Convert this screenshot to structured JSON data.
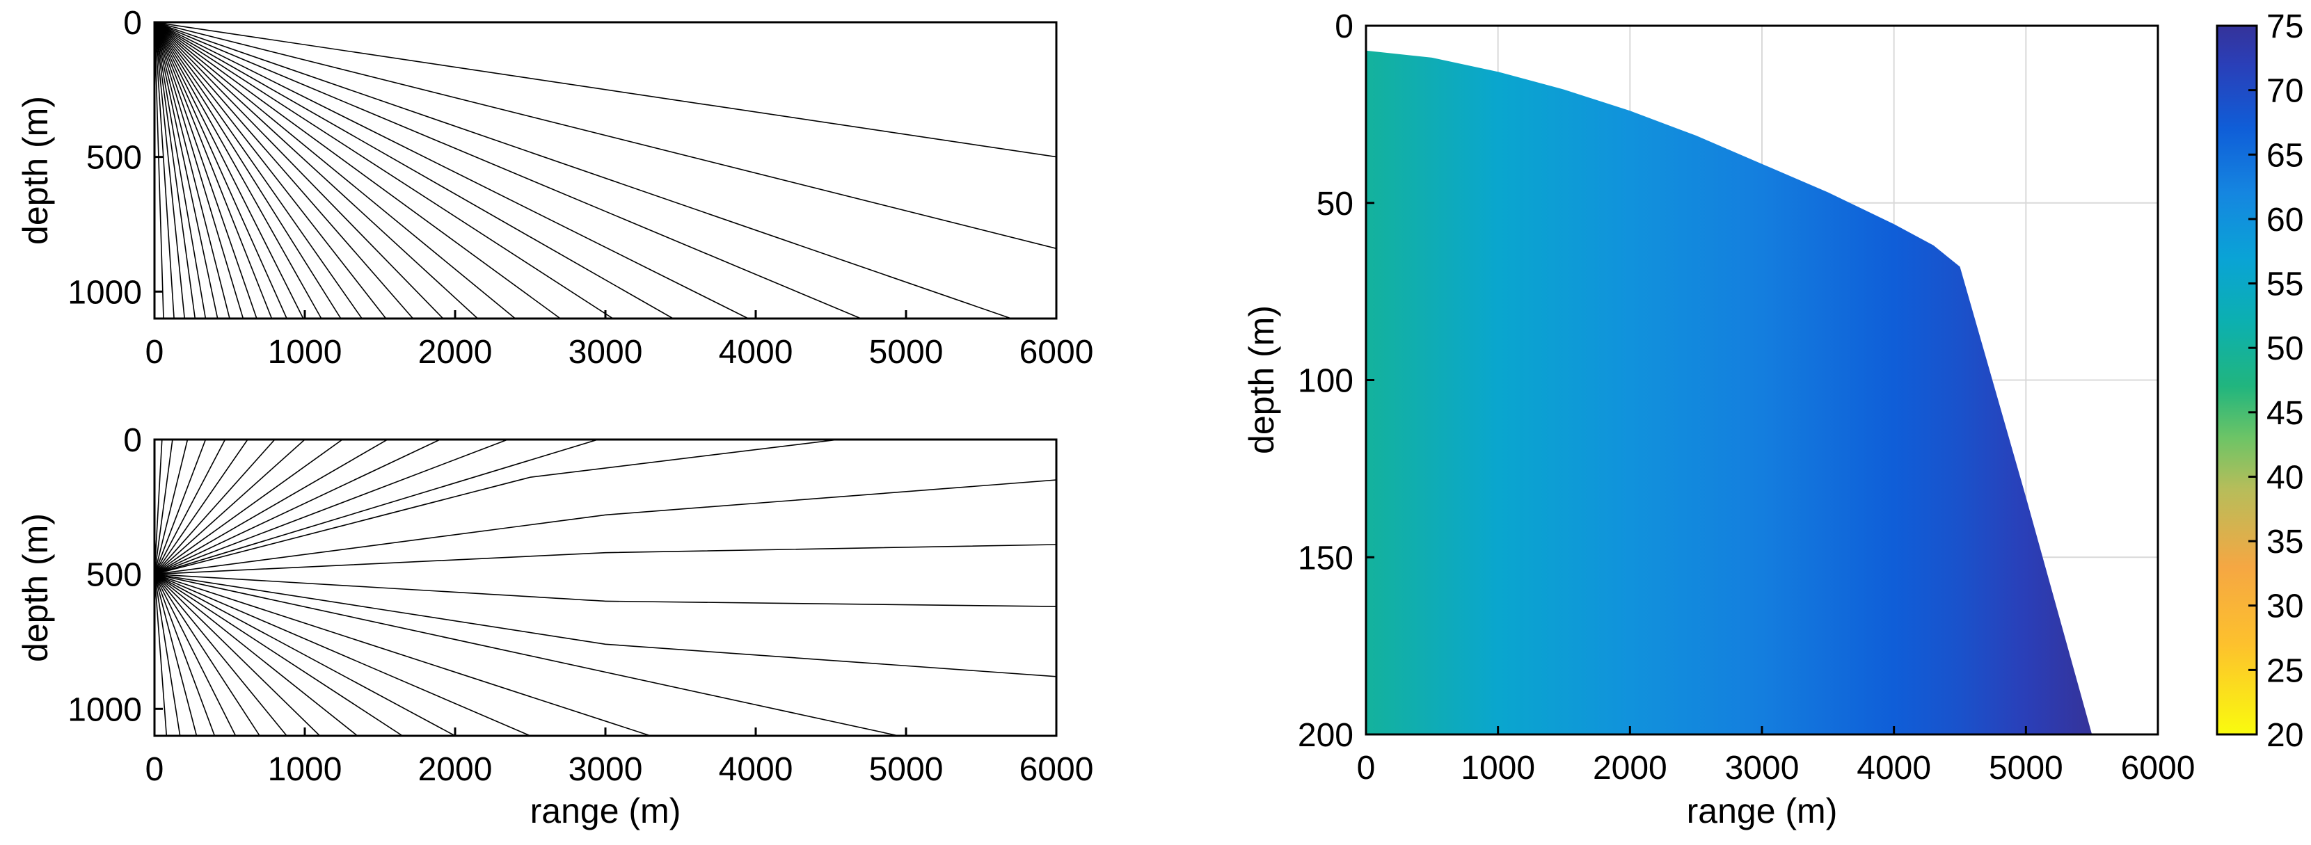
{
  "chart_data": [
    {
      "type": "line",
      "panel": "top-left",
      "xlabel": "",
      "ylabel": "depth (m)",
      "xlim": [
        0,
        6000
      ],
      "ylim": [
        1100,
        0
      ],
      "xticks": [
        "0",
        "1000",
        "2000",
        "3000",
        "4000",
        "5000",
        "6000"
      ],
      "yticks": [
        "0",
        "500",
        "1000"
      ],
      "ray_source": {
        "x": 0,
        "depth": 0
      },
      "series": [
        {
          "values": [
            [
              0,
              0
            ],
            [
              60,
              1100
            ]
          ]
        },
        {
          "values": [
            [
              0,
              0
            ],
            [
              130,
              1100
            ]
          ]
        },
        {
          "values": [
            [
              0,
              0
            ],
            [
              200,
              1100
            ]
          ]
        },
        {
          "values": [
            [
              0,
              0
            ],
            [
              270,
              1100
            ]
          ]
        },
        {
          "values": [
            [
              0,
              0
            ],
            [
              340,
              1100
            ]
          ]
        },
        {
          "values": [
            [
              0,
              0
            ],
            [
              420,
              1100
            ]
          ]
        },
        {
          "values": [
            [
              0,
              0
            ],
            [
              500,
              1100
            ]
          ]
        },
        {
          "values": [
            [
              0,
              0
            ],
            [
              590,
              1100
            ]
          ]
        },
        {
          "values": [
            [
              0,
              0
            ],
            [
              680,
              1100
            ]
          ]
        },
        {
          "values": [
            [
              0,
              0
            ],
            [
              780,
              1100
            ]
          ]
        },
        {
          "values": [
            [
              0,
              0
            ],
            [
              880,
              1100
            ]
          ]
        },
        {
          "values": [
            [
              0,
              0
            ],
            [
              990,
              1100
            ]
          ]
        },
        {
          "values": [
            [
              0,
              0
            ],
            [
              1110,
              1100
            ]
          ]
        },
        {
          "values": [
            [
              0,
              0
            ],
            [
              1240,
              1100
            ]
          ]
        },
        {
          "values": [
            [
              0,
              0
            ],
            [
              1380,
              1100
            ]
          ]
        },
        {
          "values": [
            [
              0,
              0
            ],
            [
              1540,
              1100
            ]
          ]
        },
        {
          "values": [
            [
              0,
              0
            ],
            [
              1720,
              1100
            ]
          ]
        },
        {
          "values": [
            [
              0,
              0
            ],
            [
              1920,
              1100
            ]
          ]
        },
        {
          "values": [
            [
              0,
              0
            ],
            [
              2150,
              1100
            ]
          ]
        },
        {
          "values": [
            [
              0,
              0
            ],
            [
              2400,
              1100
            ]
          ]
        },
        {
          "values": [
            [
              0,
              0
            ],
            [
              2700,
              1100
            ]
          ]
        },
        {
          "values": [
            [
              0,
              0
            ],
            [
              3050,
              1100
            ]
          ]
        },
        {
          "values": [
            [
              0,
              0
            ],
            [
              3450,
              1100
            ]
          ]
        },
        {
          "values": [
            [
              0,
              0
            ],
            [
              3950,
              1100
            ]
          ]
        },
        {
          "values": [
            [
              0,
              0
            ],
            [
              4700,
              1100
            ]
          ]
        },
        {
          "values": [
            [
              0,
              0
            ],
            [
              5700,
              1100
            ]
          ]
        },
        {
          "values": [
            [
              0,
              0
            ],
            [
              6000,
              840
            ]
          ]
        },
        {
          "values": [
            [
              0,
              0
            ],
            [
              6000,
              500
            ]
          ]
        },
        {
          "values": [
            [
              0,
              0
            ],
            [
              2250,
              0
            ]
          ]
        },
        {
          "values": [
            [
              0,
              0
            ],
            [
              1850,
              0
            ]
          ]
        },
        {
          "values": [
            [
              0,
              0
            ],
            [
              1500,
              0
            ]
          ]
        }
      ]
    },
    {
      "type": "line",
      "panel": "bottom-left",
      "xlabel": "range (m)",
      "ylabel": "depth (m)",
      "xlim": [
        0,
        6000
      ],
      "ylim": [
        1100,
        0
      ],
      "xticks": [
        "0",
        "1000",
        "2000",
        "3000",
        "4000",
        "5000",
        "6000"
      ],
      "yticks": [
        "0",
        "500",
        "1000"
      ],
      "ray_source": {
        "x": 0,
        "depth": 500
      },
      "series": [
        {
          "values": [
            [
              0,
              500
            ],
            [
              2950,
              0
            ]
          ]
        },
        {
          "values": [
            [
              0,
              500
            ],
            [
              2350,
              0
            ]
          ]
        },
        {
          "values": [
            [
              0,
              500
            ],
            [
              1900,
              0
            ]
          ]
        },
        {
          "values": [
            [
              0,
              500
            ],
            [
              1550,
              0
            ]
          ]
        },
        {
          "values": [
            [
              0,
              500
            ],
            [
              1250,
              0
            ]
          ]
        },
        {
          "values": [
            [
              0,
              500
            ],
            [
              1000,
              0
            ]
          ]
        },
        {
          "values": [
            [
              0,
              500
            ],
            [
              800,
              0
            ]
          ]
        },
        {
          "values": [
            [
              0,
              500
            ],
            [
              620,
              0
            ]
          ]
        },
        {
          "values": [
            [
              0,
              500
            ],
            [
              470,
              0
            ]
          ]
        },
        {
          "values": [
            [
              0,
              500
            ],
            [
              340,
              0
            ]
          ]
        },
        {
          "values": [
            [
              0,
              500
            ],
            [
              220,
              0
            ]
          ]
        },
        {
          "values": [
            [
              0,
              500
            ],
            [
              120,
              0
            ]
          ]
        },
        {
          "values": [
            [
              0,
              500
            ],
            [
              50,
              0
            ]
          ]
        },
        {
          "values": [
            [
              0,
              500
            ],
            [
              2500,
              140
            ],
            [
              4550,
              0
            ],
            [
              6000,
              130
            ]
          ]
        },
        {
          "values": [
            [
              0,
              500
            ],
            [
              3000,
              280
            ],
            [
              6000,
              150
            ]
          ]
        },
        {
          "values": [
            [
              0,
              500
            ],
            [
              3000,
              420
            ],
            [
              6000,
              390
            ]
          ]
        },
        {
          "values": [
            [
              0,
              500
            ],
            [
              3000,
              600
            ],
            [
              6000,
              620
            ]
          ]
        },
        {
          "values": [
            [
              0,
              500
            ],
            [
              3000,
              760
            ],
            [
              6000,
              880
            ]
          ]
        },
        {
          "values": [
            [
              0,
              500
            ],
            [
              4950,
              1100
            ]
          ]
        },
        {
          "values": [
            [
              0,
              500
            ],
            [
              3300,
              1100
            ]
          ]
        },
        {
          "values": [
            [
              0,
              500
            ],
            [
              2500,
              1100
            ]
          ]
        },
        {
          "values": [
            [
              0,
              500
            ],
            [
              2000,
              1100
            ]
          ]
        },
        {
          "values": [
            [
              0,
              500
            ],
            [
              1650,
              1100
            ]
          ]
        },
        {
          "values": [
            [
              0,
              500
            ],
            [
              1350,
              1100
            ]
          ]
        },
        {
          "values": [
            [
              0,
              500
            ],
            [
              1100,
              1100
            ]
          ]
        },
        {
          "values": [
            [
              0,
              500
            ],
            [
              880,
              1100
            ]
          ]
        },
        {
          "values": [
            [
              0,
              500
            ],
            [
              700,
              1100
            ]
          ]
        },
        {
          "values": [
            [
              0,
              500
            ],
            [
              540,
              1100
            ]
          ]
        },
        {
          "values": [
            [
              0,
              500
            ],
            [
              400,
              1100
            ]
          ]
        },
        {
          "values": [
            [
              0,
              500
            ],
            [
              280,
              1100
            ]
          ]
        },
        {
          "values": [
            [
              0,
              500
            ],
            [
              170,
              1100
            ]
          ]
        },
        {
          "values": [
            [
              0,
              500
            ],
            [
              80,
              1100
            ]
          ]
        }
      ]
    },
    {
      "type": "heatmap",
      "panel": "right",
      "xlabel": "range (m)",
      "ylabel": "depth (m)",
      "xlim": [
        0,
        6000
      ],
      "ylim": [
        200,
        0
      ],
      "xticks": [
        "0",
        "1000",
        "2000",
        "3000",
        "4000",
        "5000",
        "6000"
      ],
      "yticks": [
        "0",
        "50",
        "100",
        "150",
        "200"
      ],
      "grid": true,
      "data_region_boundary": [
        [
          0,
          7
        ],
        [
          500,
          9
        ],
        [
          1000,
          13
        ],
        [
          1500,
          18
        ],
        [
          2000,
          24
        ],
        [
          2500,
          31
        ],
        [
          3000,
          39
        ],
        [
          3500,
          47
        ],
        [
          4000,
          56
        ],
        [
          4300,
          62
        ],
        [
          4500,
          68
        ],
        [
          5000,
          133
        ],
        [
          5500,
          200
        ]
      ],
      "value_by_range": [
        [
          0,
          50
        ],
        [
          1000,
          56
        ],
        [
          2000,
          60
        ],
        [
          3000,
          63
        ],
        [
          4000,
          67
        ],
        [
          4500,
          69
        ],
        [
          5000,
          72
        ],
        [
          5500,
          75
        ]
      ],
      "colorbar": {
        "min": 20,
        "max": 75,
        "ticks": [
          "20",
          "25",
          "30",
          "35",
          "40",
          "45",
          "50",
          "55",
          "60",
          "65",
          "70",
          "75"
        ],
        "colormap": "parula-reversed",
        "stops": [
          {
            "value": 20,
            "color": "#f9fb0e"
          },
          {
            "value": 27,
            "color": "#fdc12d"
          },
          {
            "value": 33,
            "color": "#f5a743"
          },
          {
            "value": 39,
            "color": "#b7bd5a"
          },
          {
            "value": 43,
            "color": "#6dc466"
          },
          {
            "value": 47,
            "color": "#21b57e"
          },
          {
            "value": 52,
            "color": "#0cb0b0"
          },
          {
            "value": 57,
            "color": "#0aa3d6"
          },
          {
            "value": 62,
            "color": "#1586e0"
          },
          {
            "value": 67,
            "color": "#0f5ed8"
          },
          {
            "value": 72,
            "color": "#2a3fb8"
          },
          {
            "value": 75,
            "color": "#35339a"
          }
        ]
      }
    }
  ]
}
